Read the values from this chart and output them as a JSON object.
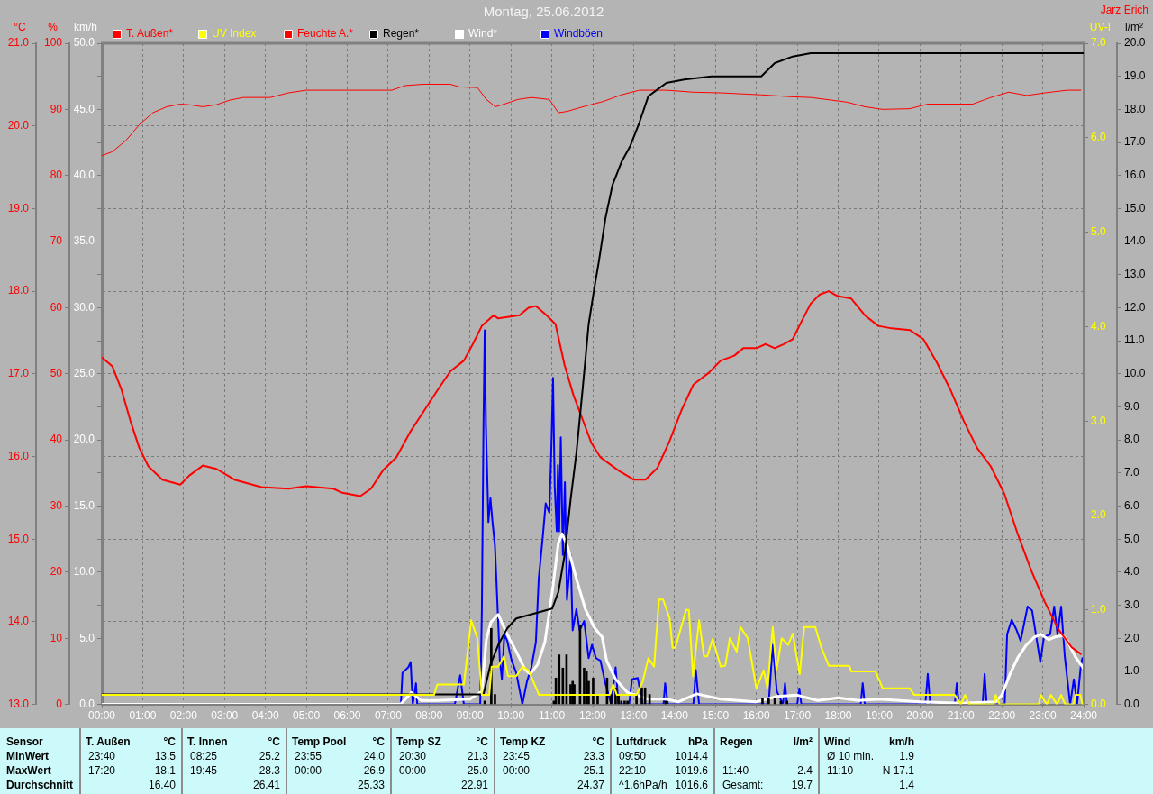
{
  "chart_data": [
    {
      "type": "line",
      "title": "Montag, 25.06.2012",
      "annotations": [
        "Jarz Erich",
        "Sensor",
        "MinWert",
        "MaxWert",
        "Durchschnitt",
        "T. Außen",
        "°C",
        "23:40",
        "13.5",
        "17:20",
        "18.1",
        "16.40",
        "T. Innen",
        "°C",
        "08:25",
        "25.2",
        "19:45",
        "28.3",
        "26.41",
        "Temp Pool",
        "°C",
        "23:55",
        "24.0",
        "00:00",
        "26.9",
        "25.33",
        "Temp SZ",
        "°C",
        "20:30",
        "21.3",
        "00:00",
        "25.0",
        "22.91",
        "Temp KZ",
        "°C",
        "23:45",
        "23.3",
        "00:00",
        "25.1",
        "24.37",
        "Luftdruck",
        "hPa",
        "09:50",
        "1014.4",
        "22:10",
        "1019.6",
        "^1.6hPa/h",
        "1016.6",
        "Regen",
        "l/m²",
        "11:40",
        "2.4",
        "Gesamt:",
        "19.7",
        "Wind",
        "km/h",
        "Ø 10 min.",
        "1.9",
        "11:10",
        "N 17.1",
        "1.4"
      ],
      "ylabel": "°C",
      "y2label": "%",
      "y3label": "km/h",
      "xlim": [
        0,
        24
      ],
      "xticks": [
        {
          "value": 0,
          "label": "00:00"
        },
        {
          "value": 1,
          "label": "01:00"
        },
        {
          "value": 2,
          "label": "02:00"
        },
        {
          "value": 3,
          "label": "03:00"
        },
        {
          "value": 4,
          "label": "04:00"
        },
        {
          "value": 5,
          "label": "05:00"
        },
        {
          "value": 6,
          "label": "06:00"
        },
        {
          "value": 7,
          "label": "07:00"
        },
        {
          "value": 8,
          "label": "08:00"
        },
        {
          "value": 9,
          "label": "09:00"
        },
        {
          "value": 10,
          "label": "10:00"
        },
        {
          "value": 11,
          "label": "11:00"
        },
        {
          "value": 12,
          "label": "12:00"
        },
        {
          "value": 13,
          "label": "13:00"
        },
        {
          "value": 14,
          "label": "14:00"
        },
        {
          "value": 15,
          "label": "15:00"
        },
        {
          "value": 16,
          "label": "16:00"
        },
        {
          "value": 17,
          "label": "17:00"
        },
        {
          "value": 18,
          "label": "18:00"
        },
        {
          "value": 19,
          "label": "19:00"
        },
        {
          "value": 20,
          "label": "20:00"
        },
        {
          "value": 21,
          "label": "21:00"
        },
        {
          "value": 22,
          "label": "22:00"
        },
        {
          "value": 23,
          "label": "23:00"
        },
        {
          "value": 24,
          "label": "24:00"
        }
      ],
      "ylim": [
        13,
        21
      ],
      "yticks": [
        {
          "value": 13,
          "label": "13.0"
        },
        {
          "value": 14,
          "label": "14.0"
        },
        {
          "value": 15,
          "label": "15.0"
        },
        {
          "value": 16,
          "label": "16.0"
        },
        {
          "value": 17,
          "label": "17.0"
        },
        {
          "value": 18,
          "label": "18.0"
        },
        {
          "value": 19,
          "label": "19.0"
        },
        {
          "value": 20,
          "label": "20.0"
        },
        {
          "value": 21,
          "label": "21.0"
        }
      ],
      "y2lim": [
        0,
        100
      ],
      "y2ticks": [
        0,
        10,
        20,
        30,
        40,
        50,
        60,
        70,
        80,
        90,
        100
      ],
      "y3lim": [
        0,
        50
      ],
      "y3ticks": [
        {
          "value": 0,
          "label": "0.0"
        },
        {
          "value": 2.5,
          "label": null
        },
        {
          "value": 5,
          "label": "5.0"
        },
        {
          "value": 7.5,
          "label": null
        },
        {
          "value": 10,
          "label": "10.0"
        },
        {
          "value": 12.5,
          "label": null
        },
        {
          "value": 15,
          "label": "15.0"
        },
        {
          "value": 17.5,
          "label": null
        },
        {
          "value": 20,
          "label": "20.0"
        },
        {
          "value": 22.5,
          "label": null
        },
        {
          "value": 25,
          "label": "25.0"
        },
        {
          "value": 27.5,
          "label": null
        },
        {
          "value": 30,
          "label": "30.0"
        },
        {
          "value": 32.5,
          "label": null
        },
        {
          "value": 35,
          "label": "35.0"
        },
        {
          "value": 37.5,
          "label": null
        },
        {
          "value": 40,
          "label": "40.0"
        },
        {
          "value": 42.5,
          "label": null
        },
        {
          "value": 45,
          "label": "45.0"
        },
        {
          "value": 47.5,
          "label": null
        },
        {
          "value": 50,
          "label": "50.0"
        }
      ],
      "grid": true,
      "legend": "top",
      "series": [
        {
          "name": "T. Außen*",
          "color": "#ff0000",
          "x": [
            0,
            0.26,
            0.48,
            0.7,
            0.92,
            1.14,
            1.48,
            1.92,
            2.14,
            2.47,
            2.8,
            3.24,
            3.9,
            4.56,
            5.0,
            5.66,
            5.88,
            6.32,
            6.58,
            6.87,
            7.2,
            7.53,
            7.86,
            8.19,
            8.52,
            8.85,
            9.07,
            9.29,
            9.58,
            9.69,
            10.21,
            10.43,
            10.61,
            10.87,
            11.09,
            11.31,
            11.53,
            11.75,
            11.97,
            12.19,
            12.63,
            13.0,
            13.29,
            13.58,
            13.88,
            14.17,
            14.46,
            14.83,
            15.13,
            15.46,
            15.68,
            16.0,
            16.23,
            16.45,
            16.67,
            16.89,
            17.11,
            17.33,
            17.55,
            17.77,
            17.99,
            18.32,
            18.65,
            18.98,
            19.31,
            19.75,
            20.08,
            20.41,
            20.74,
            21.07,
            21.4,
            21.73,
            22.06,
            22.39,
            22.72,
            23.05,
            23.38,
            23.71,
            23.93
          ],
          "values": [
            17.2,
            17.09,
            16.81,
            16.43,
            16.1,
            15.88,
            15.72,
            15.66,
            15.77,
            15.89,
            15.85,
            15.72,
            15.63,
            15.61,
            15.64,
            15.61,
            15.56,
            15.52,
            15.61,
            15.83,
            15.99,
            16.29,
            16.54,
            16.79,
            17.03,
            17.16,
            17.36,
            17.58,
            17.71,
            17.67,
            17.71,
            17.8,
            17.82,
            17.71,
            17.6,
            17.11,
            16.74,
            16.45,
            16.16,
            15.99,
            15.83,
            15.72,
            15.72,
            15.86,
            16.19,
            16.56,
            16.87,
            17.01,
            17.16,
            17.22,
            17.31,
            17.31,
            17.36,
            17.31,
            17.36,
            17.42,
            17.64,
            17.85,
            17.96,
            18.0,
            17.94,
            17.91,
            17.71,
            17.58,
            17.55,
            17.53,
            17.42,
            17.14,
            16.81,
            16.43,
            16.1,
            15.88,
            15.55,
            15.06,
            14.62,
            14.24,
            13.91,
            13.69,
            13.61
          ]
        },
        {
          "name": "Feuchte A.*",
          "color": "#ff0000",
          "axis": "y2",
          "x": [
            0,
            0.26,
            0.59,
            0.92,
            1.25,
            1.59,
            1.92,
            2.14,
            2.47,
            2.8,
            3.13,
            3.46,
            4.12,
            4.56,
            5.0,
            7.09,
            7.42,
            7.86,
            8.52,
            8.74,
            9.18,
            9.4,
            9.62,
            9.84,
            10.17,
            10.5,
            10.94,
            11.16,
            11.38,
            11.82,
            12.26,
            12.7,
            13.14,
            13.8,
            14.46,
            15.13,
            16.12,
            16.89,
            17.33,
            18.21,
            18.65,
            19.09,
            19.75,
            20.19,
            21.29,
            21.73,
            22.17,
            22.61,
            23.05,
            23.6,
            23.93
          ],
          "values": [
            83.0,
            83.6,
            85.3,
            87.7,
            89.5,
            90.4,
            90.8,
            90.7,
            90.4,
            90.7,
            91.4,
            91.8,
            91.8,
            92.5,
            92.9,
            92.9,
            93.6,
            93.8,
            93.8,
            93.4,
            93.3,
            91.5,
            90.4,
            90.8,
            91.5,
            91.8,
            91.5,
            89.5,
            89.7,
            90.5,
            91.2,
            92.2,
            92.9,
            92.9,
            92.6,
            92.5,
            92.2,
            91.9,
            91.8,
            91.1,
            90.4,
            90.0,
            90.1,
            90.8,
            90.8,
            91.8,
            92.6,
            92.1,
            92.5,
            92.9,
            92.9
          ]
        },
        {
          "name": "Wind*",
          "color": "#ffffff",
          "axis": "y3",
          "x": [
            0,
            7.3,
            7.57,
            7.8,
            8.2,
            9.0,
            9.29,
            9.4,
            9.51,
            9.69,
            9.91,
            10.13,
            10.35,
            10.47,
            10.65,
            10.83,
            11.01,
            11.16,
            11.25,
            11.38,
            11.6,
            11.82,
            12.04,
            12.23,
            12.34,
            12.56,
            12.85,
            13.07,
            13.36,
            13.8,
            14.1,
            14.54,
            15.13,
            16.0,
            16.5,
            17.0,
            17.5,
            18.0,
            18.5,
            19.0,
            20.0,
            21.0,
            21.85,
            22.0,
            22.2,
            22.4,
            22.6,
            22.8,
            22.95,
            23.15,
            23.3,
            23.5,
            23.6,
            23.8,
            24
          ],
          "values": [
            0,
            0,
            0.9,
            0.3,
            0.3,
            0.4,
            1.0,
            4.9,
            6.2,
            6.8,
            5.3,
            4.0,
            2.6,
            2.3,
            3.0,
            4.7,
            8.5,
            12.2,
            12.9,
            12.0,
            9.5,
            7.2,
            5.8,
            5.1,
            3.3,
            1.9,
            0.9,
            0.7,
            0.4,
            0.4,
            0.2,
            0.8,
            0.4,
            0.2,
            0.6,
            0.7,
            0.3,
            0.5,
            0.3,
            0.4,
            0.2,
            0.1,
            0.2,
            0.7,
            2.3,
            3.6,
            4.5,
            5.1,
            5.3,
            4.9,
            5.1,
            5.2,
            4.8,
            3.6,
            2.7
          ]
        },
        {
          "name": "Windböen",
          "color": "#0000ff",
          "axis": "y3",
          "x": [
            0,
            7.31,
            7.35,
            7.49,
            7.55,
            7.6,
            7.68,
            7.71,
            8.63,
            8.76,
            8.85,
            9.25,
            9.29,
            9.33,
            9.36,
            9.39,
            9.45,
            9.5,
            9.55,
            9.61,
            9.68,
            9.73,
            9.78,
            9.84,
            9.91,
            10.02,
            10.13,
            10.28,
            10.39,
            10.5,
            10.61,
            10.68,
            10.78,
            10.85,
            10.94,
            10.99,
            11.03,
            11.07,
            11.12,
            11.15,
            11.18,
            11.22,
            11.27,
            11.32,
            11.37,
            11.46,
            11.51,
            11.6,
            11.68,
            11.79,
            11.9,
            11.98,
            12.08,
            12.19,
            12.3,
            12.45,
            12.56,
            12.63,
            12.89,
            12.96,
            13.1,
            13.22,
            13.73,
            13.77,
            13.84,
            14.46,
            14.52,
            14.6,
            16.3,
            16.4,
            16.5,
            16.65,
            16.7,
            16.75,
            17.0,
            17.05,
            17.1,
            18.55,
            18.6,
            18.65,
            20.13,
            20.19,
            20.25,
            20.85,
            20.9,
            20.95,
            21.53,
            21.58,
            21.63,
            22.07,
            22.13,
            22.24,
            22.35,
            22.46,
            22.63,
            22.74,
            22.94,
            23.03,
            23.18,
            23.28,
            23.36,
            23.45,
            23.54,
            23.67,
            23.76,
            23.84,
            23.93,
            23.97
          ],
          "values": [
            0,
            0,
            2.4,
            2.8,
            3.2,
            0,
            1.6,
            0,
            0,
            2.2,
            0,
            0,
            7.1,
            21.1,
            28.3,
            21.1,
            13.8,
            15.6,
            13.8,
            12.0,
            6.9,
            3.3,
            1.9,
            5.3,
            4.8,
            3.3,
            2.4,
            0,
            1.7,
            2.8,
            4.7,
            9.5,
            12.7,
            15.2,
            14.5,
            19.5,
            24.7,
            16.5,
            13.1,
            18.1,
            13.1,
            20.2,
            11.3,
            16.8,
            7.9,
            11.3,
            5.6,
            7.2,
            5.6,
            6.3,
            3.5,
            4.5,
            3.5,
            3.3,
            1.7,
            0,
            2.8,
            0,
            0,
            1.9,
            2.0,
            0,
            0,
            1.6,
            0,
            0,
            2.6,
            0,
            0,
            4.5,
            1.0,
            0,
            1.6,
            0,
            0,
            1.2,
            0,
            0,
            1.6,
            0,
            0,
            2.3,
            0,
            0,
            1.6,
            0,
            0,
            2.3,
            0,
            0,
            5.3,
            6.4,
            5.7,
            4.8,
            7.4,
            7.1,
            3.2,
            5.1,
            5.3,
            7.4,
            5.3,
            7.4,
            3.6,
            0,
            1.9,
            0,
            2.9,
            3.5
          ]
        }
      ]
    },
    {
      "type": "line",
      "ylabel": "UV-I",
      "y2label": "l/m²",
      "xlim": [
        0,
        24
      ],
      "tick_labels": "y",
      "ylim": [
        0,
        7
      ],
      "yticks": [
        {
          "value": 0,
          "label": "0.0"
        },
        {
          "value": 1,
          "label": "1.0"
        },
        {
          "value": 2,
          "label": "2.0"
        },
        {
          "value": 3,
          "label": "3.0"
        },
        {
          "value": 4,
          "label": "4.0"
        },
        {
          "value": 5,
          "label": "5.0"
        },
        {
          "value": 6,
          "label": "6.0"
        },
        {
          "value": 7,
          "label": "7.0"
        }
      ],
      "y2lim": [
        0,
        20
      ],
      "y2ticks": [
        {
          "value": 0,
          "label": "0.0"
        },
        {
          "value": 1,
          "label": "1.0"
        },
        {
          "value": 2,
          "label": "2.0"
        },
        {
          "value": 3,
          "label": "3.0"
        },
        {
          "value": 4,
          "label": "4.0"
        },
        {
          "value": 5,
          "label": "5.0"
        },
        {
          "value": 6,
          "label": "6.0"
        },
        {
          "value": 7,
          "label": "7.0"
        },
        {
          "value": 8,
          "label": "8.0"
        },
        {
          "value": 9,
          "label": "9.0"
        },
        {
          "value": 10,
          "label": "10.0"
        },
        {
          "value": 11,
          "label": "11.0"
        },
        {
          "value": 12,
          "label": "12.0"
        },
        {
          "value": 13,
          "label": "13.0"
        },
        {
          "value": 14,
          "label": "14.0"
        },
        {
          "value": 15,
          "label": "15.0"
        },
        {
          "value": 16,
          "label": "16.0"
        },
        {
          "value": 17,
          "label": "17.0"
        },
        {
          "value": 18,
          "label": "18.0"
        },
        {
          "value": 19,
          "label": "19.0"
        },
        {
          "value": 20,
          "label": "20.0"
        }
      ],
      "legend": "top",
      "series": [
        {
          "name": "UV Index",
          "color": "#ffff00",
          "x": [
            0,
            8.12,
            8.2,
            8.85,
            9.03,
            9.18,
            9.29,
            9.47,
            9.53,
            9.69,
            9.83,
            9.93,
            10.13,
            10.28,
            10.43,
            10.69,
            12.41,
            12.5,
            12.59,
            13.07,
            13.22,
            13.36,
            13.5,
            13.62,
            13.72,
            13.88,
            13.95,
            14.02,
            14.28,
            14.35,
            14.45,
            14.6,
            14.72,
            14.8,
            14.93,
            15.13,
            15.24,
            15.35,
            15.52,
            15.61,
            15.79,
            16.0,
            16.18,
            16.27,
            16.4,
            16.49,
            16.62,
            16.78,
            16.89,
            17.06,
            17.17,
            17.44,
            17.59,
            17.77,
            18.27,
            18.32,
            18.91,
            19.09,
            19.75,
            19.86,
            20.85,
            21.0,
            21.1,
            21.2,
            21.8,
            21.85,
            21.95,
            22.9,
            22.95,
            23.1,
            23.2,
            23.35,
            23.45,
            23.55,
            23.75,
            23.8,
            23.92,
            23.97
          ],
          "values": [
            0.1,
            0.1,
            0.21,
            0.21,
            0.89,
            0.7,
            0.1,
            0.1,
            0.4,
            0.4,
            0.51,
            0.3,
            0.3,
            0.4,
            0.36,
            0.1,
            0.1,
            0.21,
            0.1,
            0.1,
            0.24,
            0.49,
            0.4,
            1.11,
            1.11,
            0.91,
            0.6,
            0.6,
            1.0,
            1.0,
            0.3,
            0.89,
            0.51,
            0.51,
            0.69,
            0.4,
            0.41,
            0.7,
            0.56,
            0.82,
            0.7,
            0.17,
            0.36,
            0.17,
            0.82,
            0.36,
            0.7,
            0.63,
            0.75,
            0.32,
            0.82,
            0.82,
            0.6,
            0.41,
            0.41,
            0.35,
            0.35,
            0.17,
            0.17,
            0.1,
            0.1,
            0.0,
            0.1,
            0.0,
            0.0,
            0.1,
            0.0,
            0.0,
            0.1,
            0.0,
            0.1,
            0.0,
            0.1,
            0.0,
            0.0,
            0.1,
            0.1,
            0.0
          ]
        },
        {
          "name": "Regen*",
          "color": "#000000",
          "axis": "y2",
          "x": [
            0,
            9.33,
            9.5,
            9.69,
            9.91,
            10.13,
            10.43,
            11.01,
            11.16,
            11.31,
            11.46,
            11.6,
            11.75,
            11.9,
            12.04,
            12.15,
            12.31,
            12.48,
            12.7,
            12.92,
            13.14,
            13.36,
            13.58,
            13.8,
            14.24,
            14.9,
            16.12,
            16.45,
            16.89,
            17.33,
            24
          ],
          "values": [
            0.3,
            0.3,
            1.2,
            1.8,
            2.3,
            2.6,
            2.7,
            2.9,
            3.4,
            4.5,
            6.2,
            7.6,
            9.5,
            11.5,
            12.6,
            13.4,
            14.7,
            15.7,
            16.4,
            16.9,
            17.6,
            18.4,
            18.6,
            18.8,
            18.9,
            19.0,
            19.0,
            19.4,
            19.6,
            19.7,
            19.7
          ]
        },
        {
          "type": "bar",
          "color": "#000000",
          "axis": "y2",
          "x": [
            9.36,
            9.52,
            9.61,
            11.05,
            11.1,
            11.18,
            11.27,
            11.36,
            11.46,
            11.51,
            11.55,
            11.69,
            11.79,
            11.85,
            11.9,
            12.01,
            12.12,
            12.35,
            12.45,
            12.56,
            12.63,
            12.7,
            12.78,
            12.85,
            13.07,
            13.2,
            13.28,
            13.39,
            13.78,
            16.15,
            16.3,
            16.45,
            16.6,
            16.75
          ],
          "values": [
            0.1,
            2.3,
            0.3,
            0.1,
            0.8,
            1.5,
            1.1,
            1.5,
            0.6,
            0.7,
            0.6,
            2.4,
            1.1,
            1.0,
            0.7,
            0.8,
            0.3,
            0.8,
            0.3,
            0.5,
            0.3,
            0.1,
            0.1,
            0.1,
            0.3,
            0.5,
            0.5,
            0.3,
            0.1,
            0.2,
            0.2,
            0.2,
            0.1,
            0.1
          ]
        }
      ]
    }
  ]
}
